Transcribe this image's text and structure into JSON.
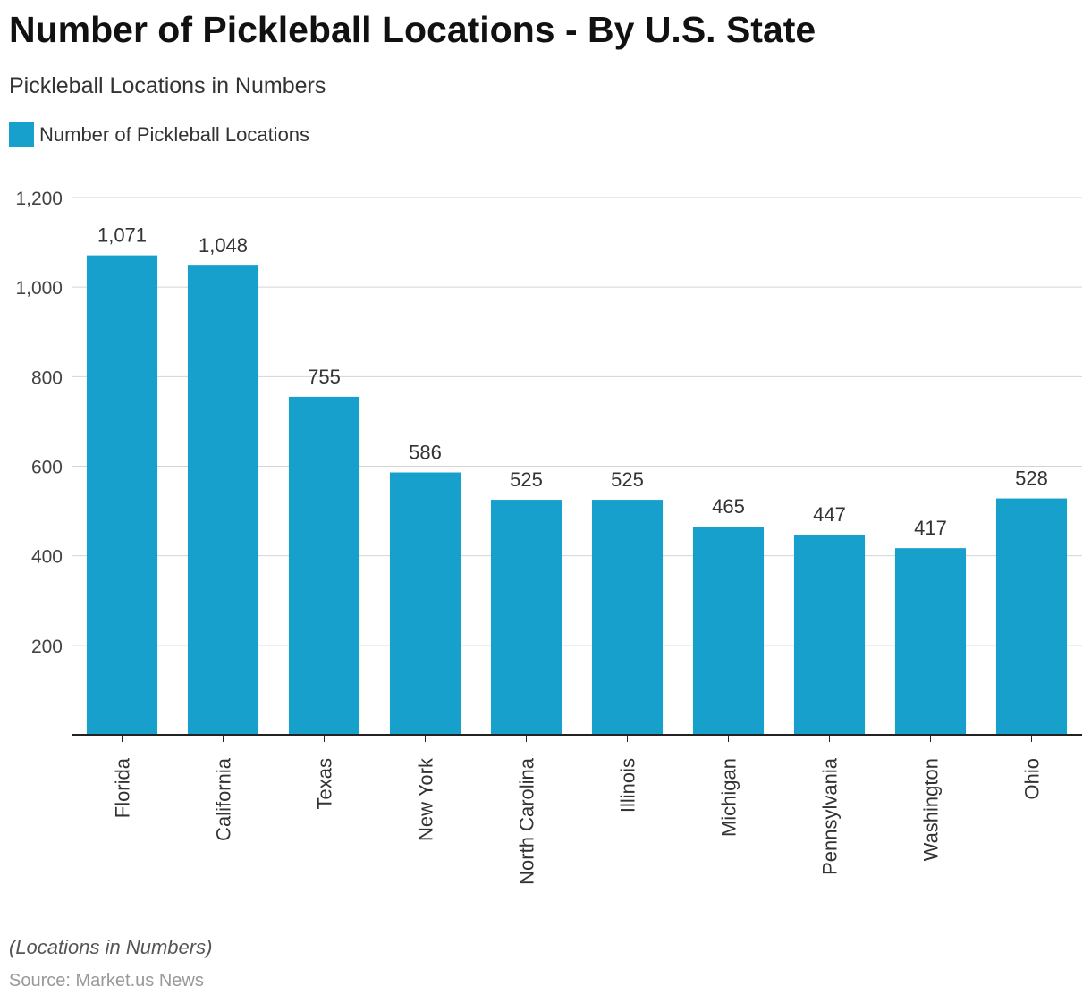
{
  "title": "Number of Pickleball Locations - By U.S. State",
  "subtitle": "Pickleball Locations in Numbers",
  "note": "(Locations in Numbers)",
  "source": "Source: Market.us News",
  "colors": {
    "bar": "#18a0cc",
    "grid": "#d4d4d4",
    "axis": "#222222"
  },
  "chart_data": {
    "type": "bar",
    "title": "Number of Pickleball Locations - By U.S. State",
    "xlabel": "",
    "ylabel": "",
    "ylim": [
      0,
      1200
    ],
    "yticks": [
      200,
      400,
      600,
      800,
      1000,
      1200
    ],
    "ytick_labels": [
      "200",
      "400",
      "600",
      "800",
      "1,000",
      "1,200"
    ],
    "grid": true,
    "legend": {
      "position": "top-left",
      "entries": [
        "Number of Pickleball Locations"
      ]
    },
    "categories": [
      "Florida",
      "California",
      "Texas",
      "New York",
      "North Carolina",
      "Illinois",
      "Michigan",
      "Pennsylvania",
      "Washington",
      "Ohio"
    ],
    "series": [
      {
        "name": "Number of Pickleball Locations",
        "values": [
          1071,
          1048,
          755,
          586,
          525,
          525,
          465,
          447,
          417,
          528
        ],
        "labels": [
          "1,071",
          "1,048",
          "755",
          "586",
          "525",
          "525",
          "465",
          "447",
          "417",
          "528"
        ]
      }
    ]
  }
}
